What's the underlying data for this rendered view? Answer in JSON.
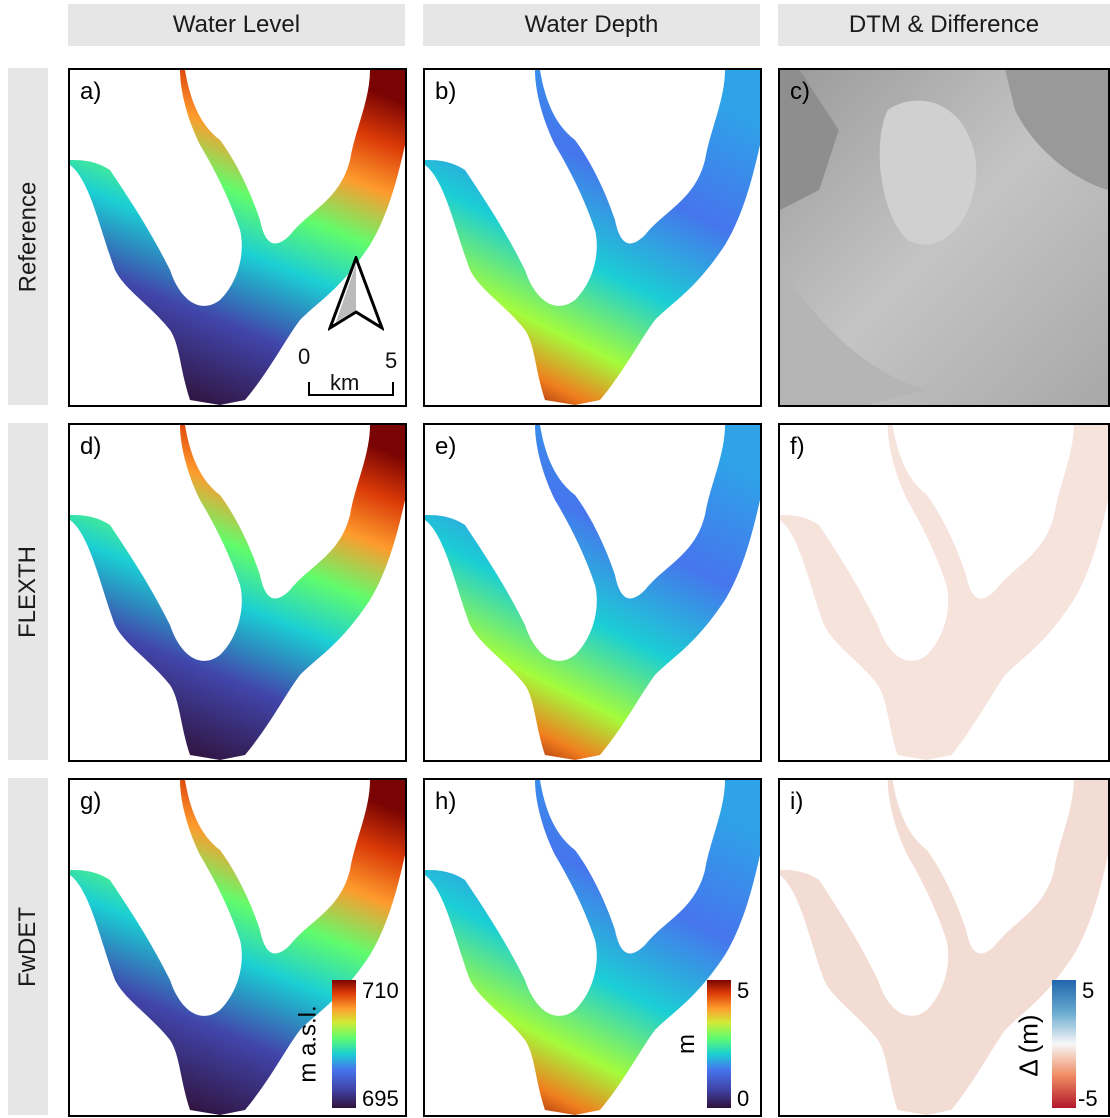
{
  "columns": [
    "Water Level",
    "Water Depth",
    "DTM & Difference"
  ],
  "rows": [
    "Reference",
    "FLEXTH",
    "FwDET"
  ],
  "panels": {
    "a": "a)",
    "b": "b)",
    "c": "c)",
    "d": "d)",
    "e": "e)",
    "f": "f)",
    "g": "g)",
    "h": "h)",
    "i": "i)"
  },
  "scalebar": {
    "min": "0",
    "max": "5",
    "unit": "km"
  },
  "colorbars": {
    "level": {
      "title": "m a.s.l.",
      "max": "710",
      "min": "695"
    },
    "depth": {
      "title": "m",
      "max": "5",
      "min": "0"
    },
    "diff": {
      "title": "Δ (m)",
      "max": "5",
      "min": "-5"
    }
  },
  "colors": {
    "header_bg": "#e6e6e6",
    "turbo_low": "#30123b",
    "turbo_high": "#7a0403",
    "diff_pos": "#2166ac",
    "diff_neg": "#b2182b"
  },
  "icons": {
    "north_arrow": "north-arrow-icon"
  }
}
